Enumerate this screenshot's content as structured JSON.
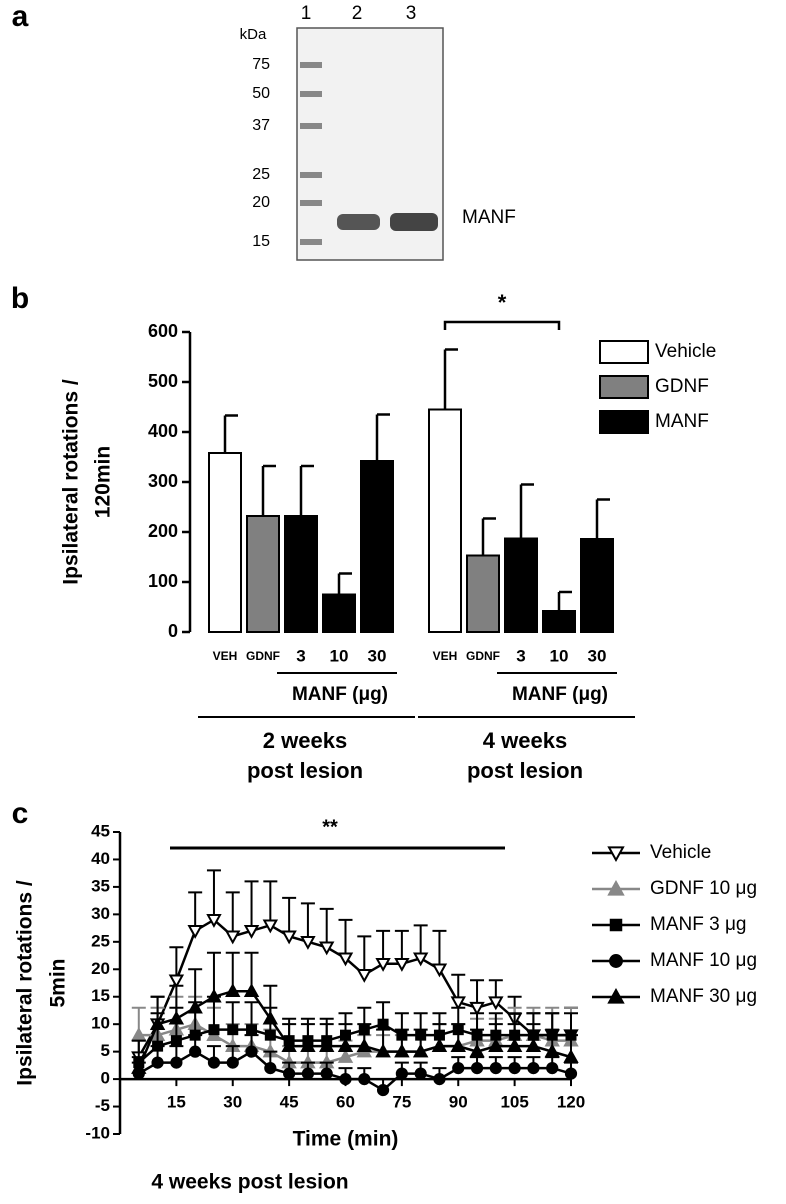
{
  "gel": {
    "panel": "a",
    "unit": "kDa",
    "lanes": [
      "1",
      "2",
      "3"
    ],
    "markers": [
      "75",
      "50",
      "37",
      "25",
      "20",
      "15"
    ],
    "band_label": "MANF"
  },
  "chart_data": [
    {
      "panel": "b",
      "type": "bar",
      "ylabel": [
        "Ipsilateral rotations /",
        "120min"
      ],
      "categories": [
        "VEH",
        "GDNF",
        "3",
        "10",
        "30",
        "VEH",
        "GDNF",
        "3",
        "10",
        "30"
      ],
      "series": [
        {
          "name": "Vehicle",
          "color": "#ffffff",
          "values": [
            358,
            null,
            null,
            null,
            null,
            445,
            null,
            null,
            null,
            null
          ],
          "errors": [
            75,
            null,
            null,
            null,
            null,
            120,
            null,
            null,
            null,
            null
          ]
        },
        {
          "name": "GDNF",
          "color": "#808080",
          "values": [
            null,
            232,
            null,
            null,
            null,
            null,
            153,
            null,
            null,
            null
          ],
          "errors": [
            null,
            100,
            null,
            null,
            null,
            null,
            74,
            null,
            null,
            null
          ]
        },
        {
          "name": "MANF",
          "color": "#000000",
          "values": [
            null,
            null,
            232,
            75,
            342,
            null,
            null,
            187,
            42,
            186
          ],
          "errors": [
            null,
            null,
            100,
            42,
            93,
            null,
            null,
            108,
            38,
            79
          ]
        }
      ],
      "groups": [
        {
          "sub_label": "MANF (μg)",
          "label": [
            "2 weeks",
            "post lesion"
          ]
        },
        {
          "sub_label": "MANF (μg)",
          "label": [
            "4 weeks",
            "post lesion"
          ]
        }
      ],
      "annotation": "*",
      "ylim": [
        0,
        600
      ],
      "yticks": [
        0,
        100,
        200,
        300,
        400,
        500,
        600
      ]
    },
    {
      "panel": "c",
      "type": "line",
      "ylabel": [
        "Ipsilateral rotations /",
        "5min"
      ],
      "xlabel": "Time (min)",
      "subtitle": "4 weeks post lesion",
      "annotation": "**",
      "x": [
        5,
        10,
        15,
        20,
        25,
        30,
        35,
        40,
        45,
        50,
        55,
        60,
        65,
        70,
        75,
        80,
        85,
        90,
        95,
        100,
        105,
        110,
        115,
        120
      ],
      "series": [
        {
          "name": "Vehicle",
          "color": "#000000",
          "marker": "triangle-down-open",
          "values": [
            4,
            10,
            18,
            27,
            29,
            26,
            27,
            28,
            26,
            25,
            24,
            22,
            19,
            21,
            21,
            22,
            20,
            14,
            13,
            14,
            11,
            8,
            8,
            8
          ],
          "errors": [
            3,
            5,
            6,
            7,
            9,
            8,
            9,
            8,
            7,
            7,
            7,
            7,
            7,
            6,
            6,
            6,
            7,
            5,
            5,
            4,
            4,
            4,
            4,
            5
          ]
        },
        {
          "name": "GDNF 10 μg",
          "color": "#888888",
          "marker": "triangle",
          "values": [
            8,
            8,
            9,
            10,
            8,
            6,
            6,
            5,
            3,
            3,
            3,
            4,
            5,
            5,
            5,
            5,
            6,
            6,
            7,
            7,
            8,
            8,
            7,
            7
          ],
          "errors": [
            5,
            5,
            6,
            5,
            5,
            4,
            4,
            4,
            3,
            3,
            3,
            3,
            3,
            3,
            3,
            3,
            4,
            4,
            4,
            4,
            5,
            5,
            6,
            6
          ]
        },
        {
          "name": "MANF 3 μg",
          "color": "#000000",
          "marker": "square",
          "values": [
            3,
            6,
            7,
            8,
            9,
            9,
            9,
            8,
            7,
            7,
            7,
            8,
            9,
            10,
            8,
            8,
            8,
            9,
            8,
            8,
            8,
            8,
            8,
            8
          ],
          "errors": [
            4,
            6,
            6,
            6,
            6,
            5,
            5,
            5,
            4,
            4,
            4,
            4,
            4,
            4,
            4,
            4,
            4,
            4,
            4,
            4,
            4,
            4,
            4,
            4
          ]
        },
        {
          "name": "MANF 10 μg",
          "color": "#000000",
          "marker": "circle",
          "values": [
            1,
            3,
            3,
            5,
            3,
            3,
            5,
            2,
            1,
            1,
            1,
            0,
            0,
            -2,
            1,
            1,
            0,
            2,
            2,
            2,
            2,
            2,
            2,
            1
          ],
          "errors": [
            2,
            3,
            3,
            3,
            3,
            3,
            3,
            3,
            2,
            2,
            2,
            2,
            2,
            2,
            2,
            2,
            2,
            2,
            2,
            2,
            2,
            2,
            2,
            2
          ]
        },
        {
          "name": "MANF 30 μg",
          "color": "#000000",
          "marker": "triangle",
          "values": [
            2,
            10,
            11,
            13,
            15,
            16,
            16,
            11,
            6,
            6,
            6,
            6,
            6,
            5,
            5,
            5,
            6,
            6,
            5,
            6,
            6,
            6,
            5,
            4
          ],
          "errors": [
            2,
            5,
            6,
            7,
            8,
            7,
            7,
            6,
            4,
            4,
            4,
            4,
            4,
            4,
            4,
            4,
            4,
            4,
            4,
            4,
            4,
            4,
            4,
            4
          ]
        }
      ],
      "xlim": [
        0,
        120
      ],
      "xticks": [
        15,
        30,
        45,
        60,
        75,
        90,
        105,
        120
      ],
      "ylim": [
        -10,
        45
      ],
      "yticks": [
        -10,
        -5,
        0,
        5,
        10,
        15,
        20,
        25,
        30,
        35,
        40,
        45
      ]
    }
  ]
}
